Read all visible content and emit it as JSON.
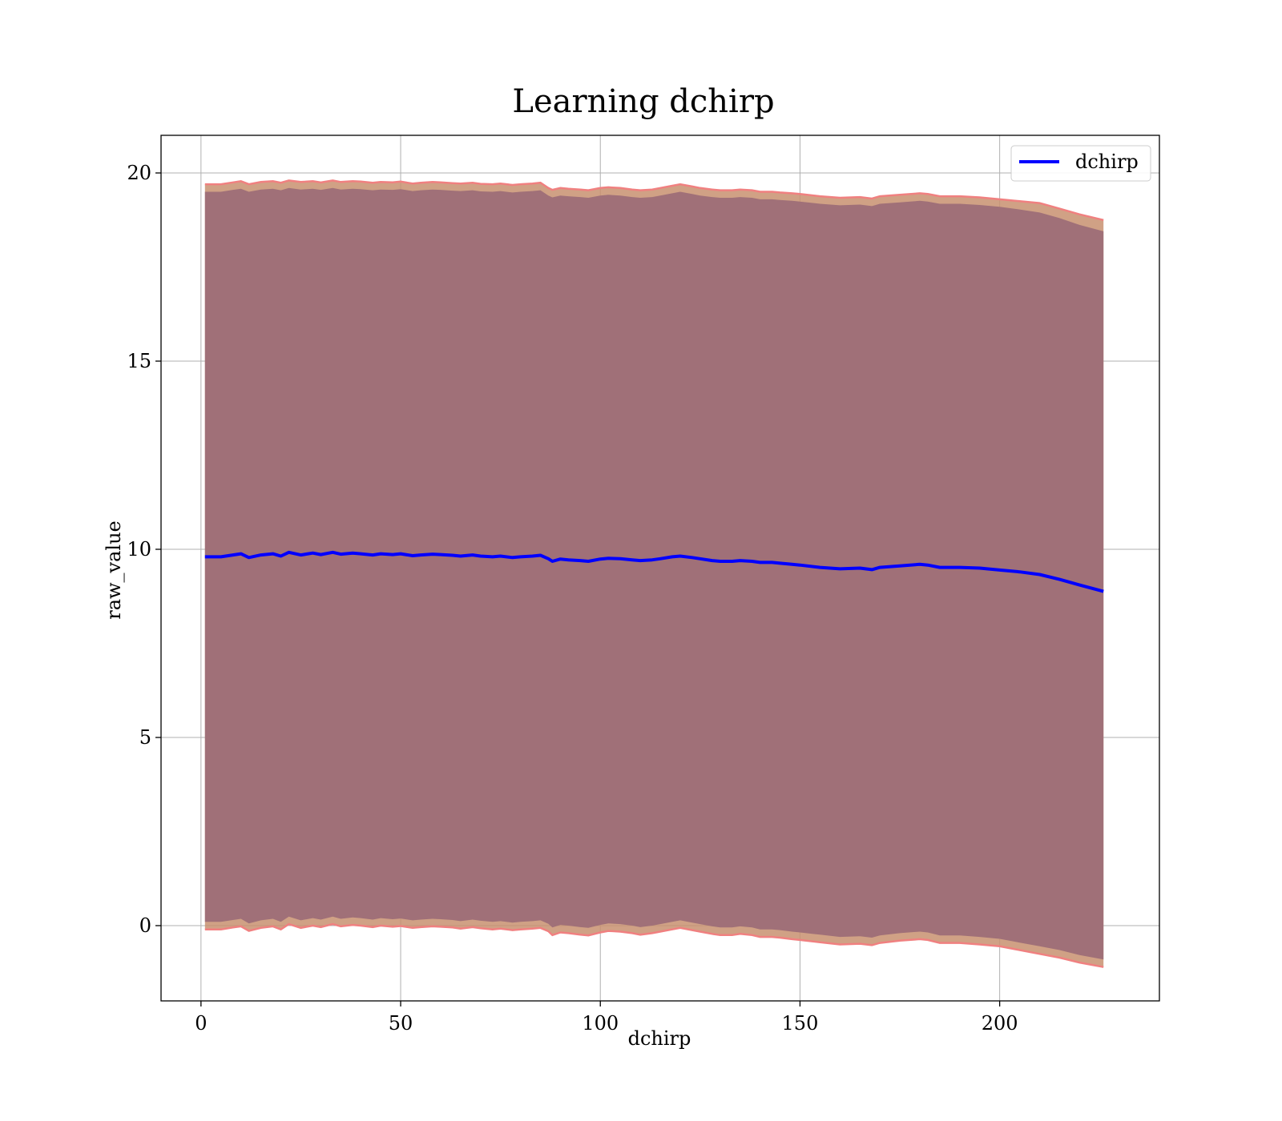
{
  "chart_data": {
    "type": "line",
    "title": "Learning dchirp",
    "xlabel": "dchirp",
    "ylabel": "raw_value",
    "xlim": [
      -10,
      240
    ],
    "ylim": [
      -2,
      21
    ],
    "xticks": [
      0,
      50,
      100,
      150,
      200
    ],
    "yticks": [
      0,
      5,
      10,
      15,
      20
    ],
    "grid": true,
    "legend_position": "top-right",
    "x": [
      1,
      5,
      8,
      10,
      12,
      15,
      18,
      20,
      22,
      25,
      28,
      30,
      33,
      35,
      38,
      40,
      43,
      45,
      48,
      50,
      53,
      55,
      58,
      60,
      63,
      65,
      68,
      70,
      73,
      75,
      78,
      80,
      83,
      85,
      87,
      88,
      90,
      92,
      95,
      97,
      100,
      102,
      105,
      108,
      110,
      113,
      115,
      118,
      120,
      123,
      125,
      128,
      130,
      133,
      135,
      138,
      140,
      143,
      145,
      148,
      150,
      155,
      160,
      165,
      168,
      170,
      175,
      180,
      182,
      185,
      190,
      195,
      200,
      205,
      210,
      215,
      220,
      226
    ],
    "series": [
      {
        "name": "dchirp",
        "color": "#0000ff",
        "values": [
          9.8,
          9.8,
          9.85,
          9.88,
          9.78,
          9.85,
          9.88,
          9.82,
          9.92,
          9.85,
          9.9,
          9.86,
          9.92,
          9.87,
          9.9,
          9.88,
          9.85,
          9.88,
          9.86,
          9.88,
          9.83,
          9.85,
          9.87,
          9.86,
          9.84,
          9.82,
          9.85,
          9.82,
          9.8,
          9.82,
          9.78,
          9.8,
          9.82,
          9.84,
          9.75,
          9.68,
          9.74,
          9.72,
          9.7,
          9.68,
          9.74,
          9.76,
          9.75,
          9.72,
          9.7,
          9.72,
          9.75,
          9.8,
          9.82,
          9.78,
          9.75,
          9.7,
          9.68,
          9.68,
          9.7,
          9.68,
          9.65,
          9.65,
          9.63,
          9.6,
          9.58,
          9.52,
          9.48,
          9.5,
          9.46,
          9.52,
          9.56,
          9.6,
          9.58,
          9.52,
          9.52,
          9.5,
          9.45,
          9.4,
          9.33,
          9.2,
          9.05,
          8.88
        ]
      }
    ],
    "band_outer_upper": [
      19.7,
      19.7,
      19.75,
      19.78,
      19.7,
      19.76,
      19.78,
      19.74,
      19.8,
      19.76,
      19.78,
      19.75,
      19.8,
      19.76,
      19.78,
      19.77,
      19.74,
      19.76,
      19.75,
      19.77,
      19.72,
      19.74,
      19.76,
      19.75,
      19.73,
      19.72,
      19.74,
      19.71,
      19.7,
      19.72,
      19.68,
      19.7,
      19.72,
      19.74,
      19.6,
      19.55,
      19.6,
      19.58,
      19.56,
      19.54,
      19.6,
      19.62,
      19.6,
      19.56,
      19.54,
      19.56,
      19.6,
      19.66,
      19.7,
      19.64,
      19.6,
      19.56,
      19.54,
      19.54,
      19.56,
      19.54,
      19.5,
      19.5,
      19.48,
      19.46,
      19.44,
      19.38,
      19.34,
      19.36,
      19.32,
      19.38,
      19.42,
      19.46,
      19.44,
      19.38,
      19.38,
      19.35,
      19.3,
      19.25,
      19.2,
      19.05,
      18.9,
      18.75
    ],
    "band_inner_upper": [
      19.5,
      19.5,
      19.55,
      19.58,
      19.5,
      19.56,
      19.58,
      19.54,
      19.6,
      19.56,
      19.58,
      19.55,
      19.6,
      19.56,
      19.58,
      19.57,
      19.54,
      19.56,
      19.55,
      19.57,
      19.52,
      19.54,
      19.56,
      19.55,
      19.53,
      19.52,
      19.54,
      19.51,
      19.5,
      19.52,
      19.48,
      19.5,
      19.52,
      19.54,
      19.4,
      19.35,
      19.4,
      19.38,
      19.36,
      19.34,
      19.4,
      19.42,
      19.4,
      19.36,
      19.34,
      19.36,
      19.4,
      19.46,
      19.5,
      19.44,
      19.4,
      19.36,
      19.34,
      19.34,
      19.36,
      19.34,
      19.3,
      19.3,
      19.28,
      19.26,
      19.24,
      19.18,
      19.14,
      19.16,
      19.12,
      19.18,
      19.22,
      19.26,
      19.24,
      19.18,
      19.18,
      19.15,
      19.1,
      19.03,
      18.95,
      18.8,
      18.62,
      18.45
    ],
    "band_inner_lower": [
      0.1,
      0.1,
      0.15,
      0.18,
      0.06,
      0.14,
      0.18,
      0.1,
      0.24,
      0.14,
      0.2,
      0.16,
      0.24,
      0.18,
      0.22,
      0.2,
      0.16,
      0.2,
      0.17,
      0.19,
      0.14,
      0.16,
      0.18,
      0.17,
      0.15,
      0.12,
      0.16,
      0.13,
      0.1,
      0.12,
      0.08,
      0.1,
      0.12,
      0.14,
      0.05,
      -0.05,
      0.02,
      0.0,
      -0.04,
      -0.06,
      0.02,
      0.06,
      0.04,
      0.0,
      -0.04,
      0.0,
      0.04,
      0.1,
      0.14,
      0.08,
      0.04,
      -0.02,
      -0.05,
      -0.05,
      -0.02,
      -0.05,
      -0.1,
      -0.1,
      -0.12,
      -0.16,
      -0.18,
      -0.24,
      -0.3,
      -0.28,
      -0.32,
      -0.26,
      -0.2,
      -0.16,
      -0.18,
      -0.26,
      -0.26,
      -0.3,
      -0.35,
      -0.45,
      -0.55,
      -0.65,
      -0.78,
      -0.9
    ],
    "band_outer_lower": [
      -0.1,
      -0.1,
      -0.05,
      -0.02,
      -0.14,
      -0.06,
      -0.02,
      -0.1,
      0.04,
      -0.06,
      0.0,
      -0.04,
      0.04,
      -0.02,
      0.02,
      0.0,
      -0.04,
      0.0,
      -0.03,
      -0.01,
      -0.06,
      -0.04,
      -0.02,
      -0.03,
      -0.05,
      -0.08,
      -0.04,
      -0.07,
      -0.1,
      -0.08,
      -0.12,
      -0.1,
      -0.08,
      -0.06,
      -0.15,
      -0.25,
      -0.18,
      -0.2,
      -0.24,
      -0.26,
      -0.18,
      -0.14,
      -0.16,
      -0.2,
      -0.24,
      -0.2,
      -0.16,
      -0.1,
      -0.06,
      -0.12,
      -0.16,
      -0.22,
      -0.25,
      -0.25,
      -0.22,
      -0.25,
      -0.3,
      -0.3,
      -0.32,
      -0.36,
      -0.38,
      -0.44,
      -0.5,
      -0.48,
      -0.52,
      -0.46,
      -0.4,
      -0.36,
      -0.38,
      -0.46,
      -0.46,
      -0.5,
      -0.55,
      -0.65,
      -0.75,
      -0.85,
      -0.98,
      -1.1
    ],
    "band_color": "#a07078",
    "band_edge_color": "#f08080"
  }
}
